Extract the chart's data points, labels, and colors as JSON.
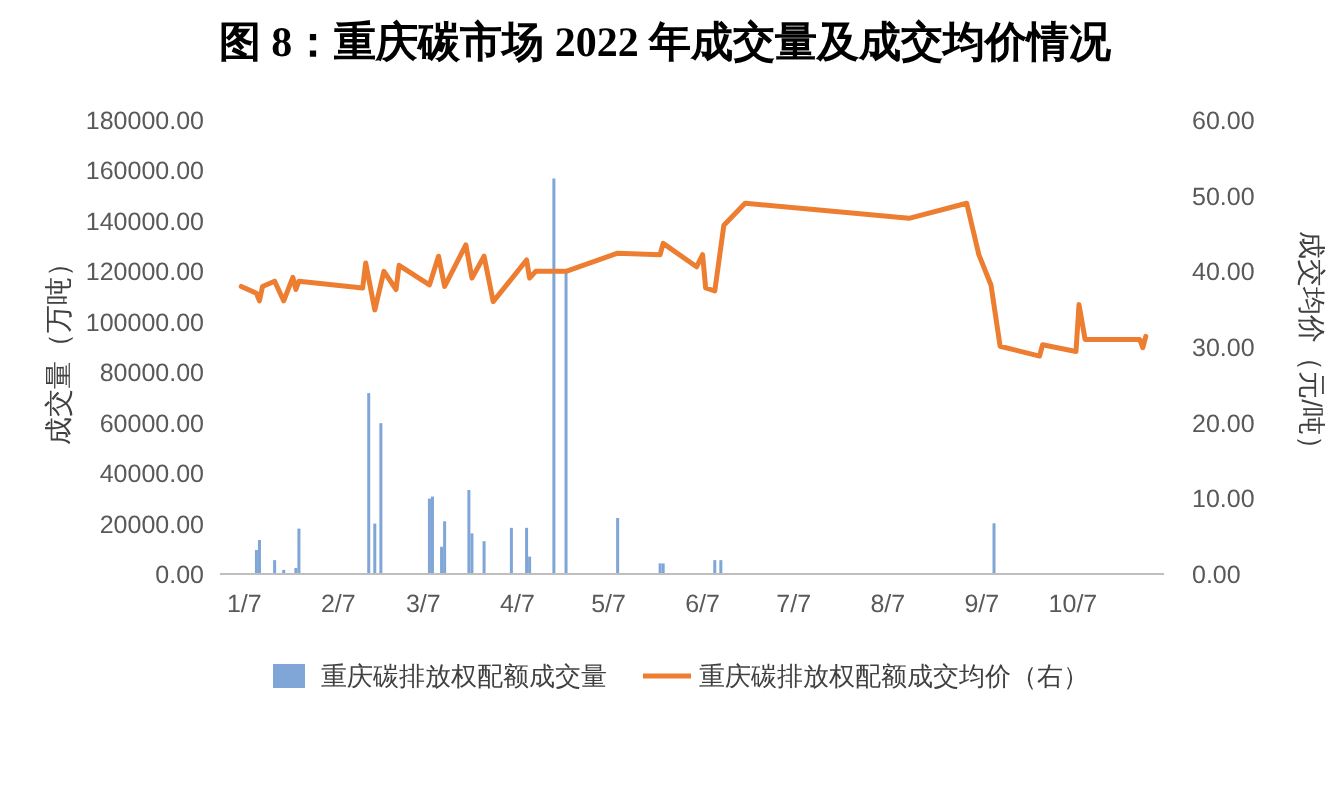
{
  "chart_data": {
    "type": "bar",
    "title": "图 8：重庆碳市场 2022 年成交量及成交均价情况",
    "ylabel": "成交量（万吨）",
    "y2label": "成交均价（元/吨）",
    "xlim": [
      "2021-12-30",
      "2022-11-06"
    ],
    "xticks": [
      {
        "value": "2022-01-07",
        "label": "1/7"
      },
      {
        "value": "2022-02-07",
        "label": "2/7"
      },
      {
        "value": "2022-03-07",
        "label": "3/7"
      },
      {
        "value": "2022-04-07",
        "label": "4/7"
      },
      {
        "value": "2022-05-07",
        "label": "5/7"
      },
      {
        "value": "2022-06-07",
        "label": "6/7"
      },
      {
        "value": "2022-07-07",
        "label": "7/7"
      },
      {
        "value": "2022-08-07",
        "label": "8/7"
      },
      {
        "value": "2022-09-07",
        "label": "9/7"
      },
      {
        "value": "2022-10-07",
        "label": "10/7"
      }
    ],
    "ylim": [
      0,
      180000
    ],
    "yticks": [
      {
        "value": 0,
        "label": "0.00"
      },
      {
        "value": 20000,
        "label": "20000.00"
      },
      {
        "value": 40000,
        "label": "40000.00"
      },
      {
        "value": 60000,
        "label": "60000.00"
      },
      {
        "value": 80000,
        "label": "80000.00"
      },
      {
        "value": 100000,
        "label": "100000.00"
      },
      {
        "value": 120000,
        "label": "120000.00"
      },
      {
        "value": 140000,
        "label": "140000.00"
      },
      {
        "value": 160000,
        "label": "160000.00"
      },
      {
        "value": 180000,
        "label": "180000.00"
      }
    ],
    "y2lim": [
      0,
      60
    ],
    "y2ticks": [
      {
        "value": 0,
        "label": "0.00"
      },
      {
        "value": 10,
        "label": "10.00"
      },
      {
        "value": 20,
        "label": "20.00"
      },
      {
        "value": 30,
        "label": "30.00"
      },
      {
        "value": 40,
        "label": "40.00"
      },
      {
        "value": 50,
        "label": "50.00"
      },
      {
        "value": 60,
        "label": "60.00"
      }
    ],
    "grid": false,
    "legend": "bottom",
    "series": [
      {
        "name": "重庆碳排放权配额成交量",
        "axis": "y",
        "color": "#7fa6d6",
        "x": [
          "2022-01-11",
          "2022-01-12",
          "2022-01-17",
          "2022-01-20",
          "2022-01-24",
          "2022-01-25",
          "2022-02-17",
          "2022-02-19",
          "2022-02-21",
          "2022-03-09",
          "2022-03-10",
          "2022-03-13",
          "2022-03-14",
          "2022-03-22",
          "2022-03-23",
          "2022-03-27",
          "2022-04-05",
          "2022-04-10",
          "2022-04-11",
          "2022-04-19",
          "2022-04-23",
          "2022-05-10",
          "2022-05-24",
          "2022-05-25",
          "2022-06-11",
          "2022-06-13",
          "2022-09-11"
        ],
        "values": [
          9500,
          13500,
          5500,
          1600,
          2400,
          18000,
          71700,
          20000,
          59800,
          29900,
          30700,
          10800,
          20900,
          33300,
          16100,
          13000,
          18300,
          18300,
          6900,
          156800,
          119800,
          22200,
          4200,
          4200,
          5500,
          5500,
          20100
        ]
      },
      {
        "name": "重庆碳排放权配额成交均价（右）",
        "type": "line",
        "axis": "y2",
        "color": "#ed7d31",
        "x": [
          "2022-01-06",
          "2022-01-11",
          "2022-01-12",
          "2022-01-13",
          "2022-01-17",
          "2022-01-20",
          "2022-01-23",
          "2022-01-24",
          "2022-01-25",
          "2022-02-15",
          "2022-02-16",
          "2022-02-19",
          "2022-02-22",
          "2022-02-26",
          "2022-02-27",
          "2022-03-09",
          "2022-03-12",
          "2022-03-14",
          "2022-03-21",
          "2022-03-23",
          "2022-03-27",
          "2022-03-30",
          "2022-04-10",
          "2022-04-11",
          "2022-04-13",
          "2022-04-23",
          "2022-05-10",
          "2022-05-24",
          "2022-05-25",
          "2022-06-05",
          "2022-06-07",
          "2022-06-08",
          "2022-06-11",
          "2022-06-14",
          "2022-06-21",
          "2022-08-14",
          "2022-09-02",
          "2022-09-06",
          "2022-09-10",
          "2022-09-13",
          "2022-09-26",
          "2022-09-27",
          "2022-10-08",
          "2022-10-09",
          "2022-10-11",
          "2022-10-29",
          "2022-10-30",
          "2022-10-31"
        ],
        "values": [
          38.0,
          37.1,
          36.1,
          38.0,
          38.7,
          36.1,
          39.2,
          37.6,
          38.7,
          37.8,
          41.1,
          34.9,
          40.0,
          37.6,
          40.8,
          38.2,
          42.0,
          38.0,
          43.5,
          39.1,
          42.0,
          36.0,
          41.5,
          39.1,
          40.0,
          40.0,
          42.4,
          42.2,
          43.7,
          40.6,
          42.2,
          37.8,
          37.4,
          46.1,
          49.0,
          47.0,
          49.0,
          42.2,
          38.2,
          30.1,
          28.8,
          30.3,
          29.4,
          35.6,
          31.0,
          31.0,
          29.9,
          31.4
        ]
      }
    ]
  }
}
